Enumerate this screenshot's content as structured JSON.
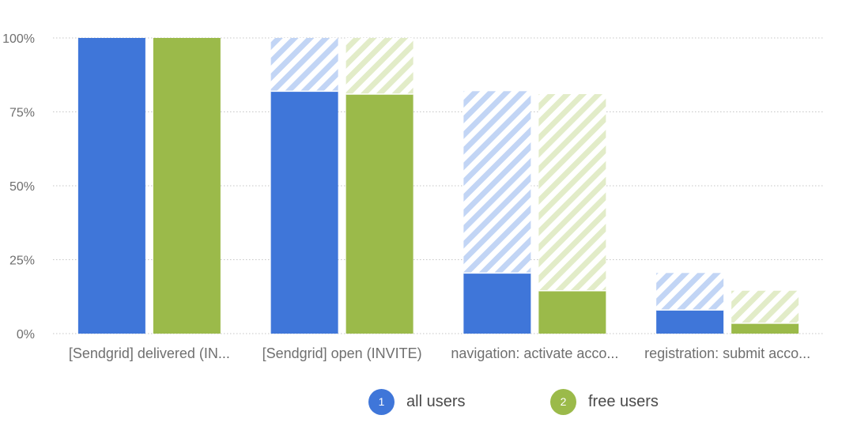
{
  "chart_data": {
    "type": "bar",
    "categories": [
      "[Sendgrid] delivered (IN...",
      "[Sendgrid] open (INVITE)",
      "navigation: activate acco...",
      "registration: submit acco..."
    ],
    "y_ticks": [
      "0%",
      "25%",
      "50%",
      "75%",
      "100%"
    ],
    "ylim": [
      0,
      100
    ],
    "grid": true,
    "legend_position": "bottom",
    "series": [
      {
        "name": "all users",
        "badge": "1",
        "color": "#3f76d9",
        "hatch_color": "#c2d5f5",
        "values": [
          100,
          82,
          20.5,
          8
        ],
        "previous_step": [
          100,
          100,
          82,
          20.5
        ]
      },
      {
        "name": "free users",
        "badge": "2",
        "color": "#9bba4a",
        "hatch_color": "#e2ecc8",
        "values": [
          100,
          81,
          14.5,
          3.5
        ],
        "previous_step": [
          100,
          100,
          81,
          14.5
        ]
      }
    ]
  }
}
